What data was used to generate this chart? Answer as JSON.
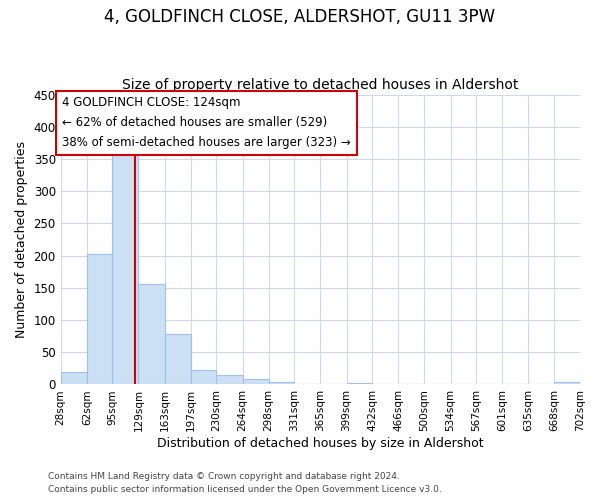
{
  "title": "4, GOLDFINCH CLOSE, ALDERSHOT, GU11 3PW",
  "subtitle": "Size of property relative to detached houses in Aldershot",
  "xlabel": "Distribution of detached houses by size in Aldershot",
  "ylabel": "Number of detached properties",
  "bar_edges": [
    28,
    62,
    95,
    129,
    163,
    197,
    230,
    264,
    298,
    331,
    365,
    399,
    432,
    466,
    500,
    534,
    567,
    601,
    635,
    668,
    702
  ],
  "bar_heights": [
    20,
    203,
    366,
    156,
    79,
    23,
    15,
    8,
    4,
    0,
    0,
    3,
    0,
    0,
    0,
    0,
    0,
    0,
    0,
    4
  ],
  "tick_labels": [
    "28sqm",
    "62sqm",
    "95sqm",
    "129sqm",
    "163sqm",
    "197sqm",
    "230sqm",
    "264sqm",
    "298sqm",
    "331sqm",
    "365sqm",
    "399sqm",
    "432sqm",
    "466sqm",
    "500sqm",
    "534sqm",
    "567sqm",
    "601sqm",
    "635sqm",
    "668sqm",
    "702sqm"
  ],
  "bar_color": "#cce0f5",
  "bar_edge_color": "#a0c0e8",
  "property_line_x": 124,
  "property_line_color": "#cc0000",
  "annotation_title": "4 GOLDFINCH CLOSE: 124sqm",
  "annotation_line1": "← 62% of detached houses are smaller (529)",
  "annotation_line2": "38% of semi-detached houses are larger (323) →",
  "annotation_box_color": "#ffffff",
  "annotation_box_edge": "#cc0000",
  "ylim": [
    0,
    450
  ],
  "yticks": [
    0,
    50,
    100,
    150,
    200,
    250,
    300,
    350,
    400,
    450
  ],
  "grid_color": "#d0d8e8",
  "footer1": "Contains HM Land Registry data © Crown copyright and database right 2024.",
  "footer2": "Contains public sector information licensed under the Open Government Licence v3.0.",
  "bg_color": "#ffffff",
  "title_fontsize": 12,
  "subtitle_fontsize": 10,
  "ann_fontsize": 8.5
}
